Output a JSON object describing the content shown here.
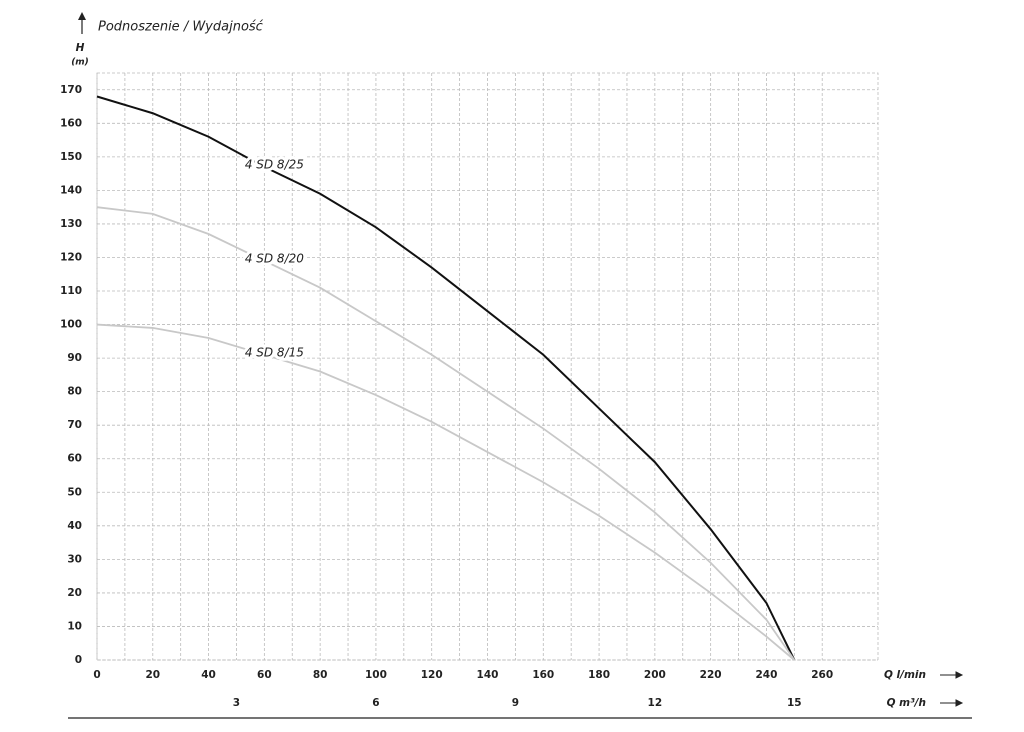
{
  "chart_data": {
    "type": "line",
    "title": "Podnoszenie / Wydajność",
    "y_label": "H",
    "y_unit": "(m)",
    "x_label": "Q l/min",
    "x2_label": "Q m³/h",
    "x": [
      0,
      20,
      40,
      60,
      80,
      100,
      120,
      140,
      160,
      180,
      200,
      220,
      240,
      250
    ],
    "series": [
      {
        "name": "4 SD 8/25",
        "color": "#111111",
        "values": [
          168,
          163,
          156,
          147,
          139,
          129,
          117,
          104,
          91,
          75,
          59,
          39,
          17,
          0
        ]
      },
      {
        "name": "4 SD 8/20",
        "color": "#c8c8c8",
        "values": [
          135,
          133,
          127,
          119,
          111,
          101,
          91,
          80,
          69,
          57,
          44,
          29,
          12,
          0
        ]
      },
      {
        "name": "4 SD 8/15",
        "color": "#c8c8c8",
        "values": [
          100,
          99,
          96,
          91,
          86,
          79,
          71,
          62,
          53,
          43,
          32,
          20,
          7,
          0
        ]
      }
    ],
    "xlim": [
      0,
      280
    ],
    "xticks": [
      0,
      20,
      40,
      60,
      80,
      100,
      120,
      140,
      160,
      180,
      200,
      220,
      240,
      260
    ],
    "x2lim": [
      0,
      16.8
    ],
    "x2ticks": [
      3,
      6,
      9,
      12,
      15
    ],
    "ylim": [
      0,
      175
    ],
    "yticks": [
      0,
      10,
      20,
      30,
      40,
      50,
      60,
      70,
      80,
      90,
      100,
      110,
      120,
      130,
      140,
      150,
      160,
      170
    ],
    "grid": true
  }
}
